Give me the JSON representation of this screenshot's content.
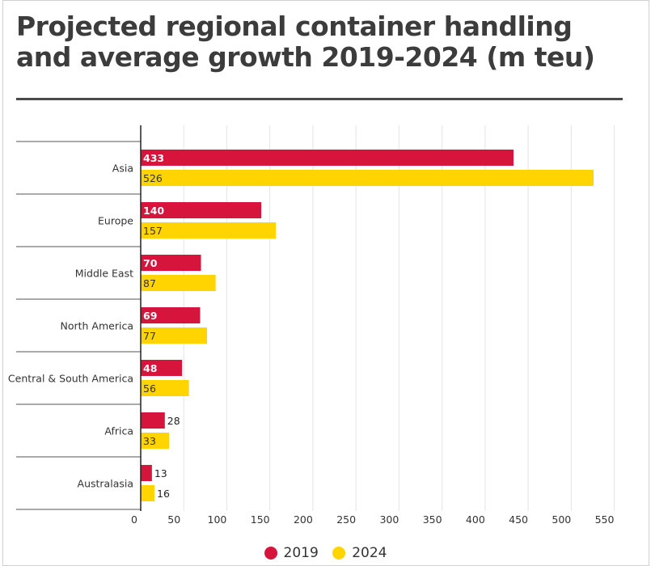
{
  "chart_data": {
    "type": "bar",
    "orientation": "horizontal",
    "title": "Projected regional container handling and average growth 2019-2024 (m teu)",
    "categories": [
      "Asia",
      "Europe",
      "Middle East",
      "North America",
      "Central & South America",
      "Africa",
      "Australasia"
    ],
    "series": [
      {
        "name": "2019",
        "color": "#d7143c",
        "values": [
          433,
          140,
          70,
          69,
          48,
          28,
          13
        ]
      },
      {
        "name": "2024",
        "color": "#ffd400",
        "values": [
          526,
          157,
          87,
          77,
          56,
          33,
          16
        ]
      }
    ],
    "xlim": [
      0,
      560
    ],
    "xticks": [
      0,
      50,
      100,
      150,
      200,
      250,
      300,
      350,
      400,
      450,
      500,
      550
    ],
    "grid": true,
    "legend_position": "bottom"
  }
}
